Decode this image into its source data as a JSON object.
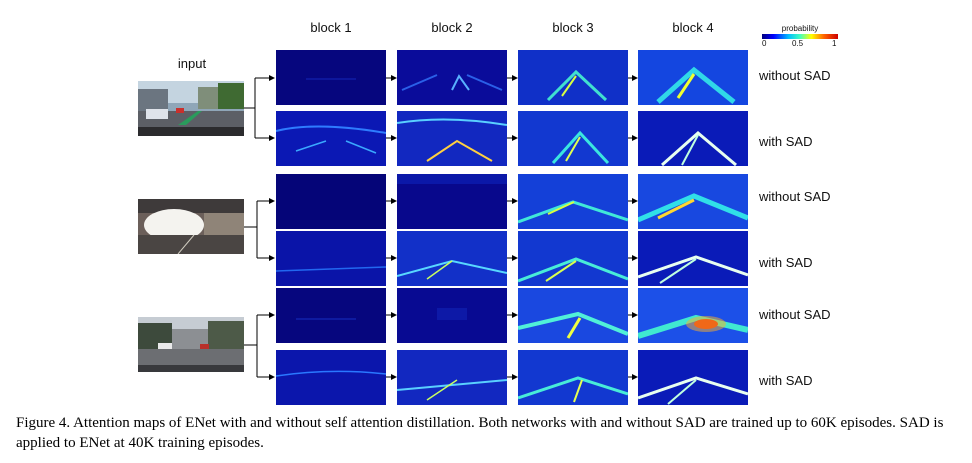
{
  "figure": {
    "input_label": "input",
    "columns": [
      "block 1",
      "block 2",
      "block 3",
      "block 4"
    ],
    "colorbar": {
      "title": "probability",
      "ticks": [
        "0",
        "0.5",
        "1"
      ]
    },
    "row_labels": [
      "without SAD",
      "with SAD",
      "without SAD",
      "with SAD",
      "without SAD",
      "with SAD"
    ],
    "inputs": [
      "input-photo-1",
      "input-photo-2",
      "input-photo-3"
    ]
  },
  "caption": "Figure 4. Attention maps of ENet with and without self attention distillation. Both networks with and without SAD are trained up to 60K episodes. SAD is applied to ENet at 40K training episodes."
}
